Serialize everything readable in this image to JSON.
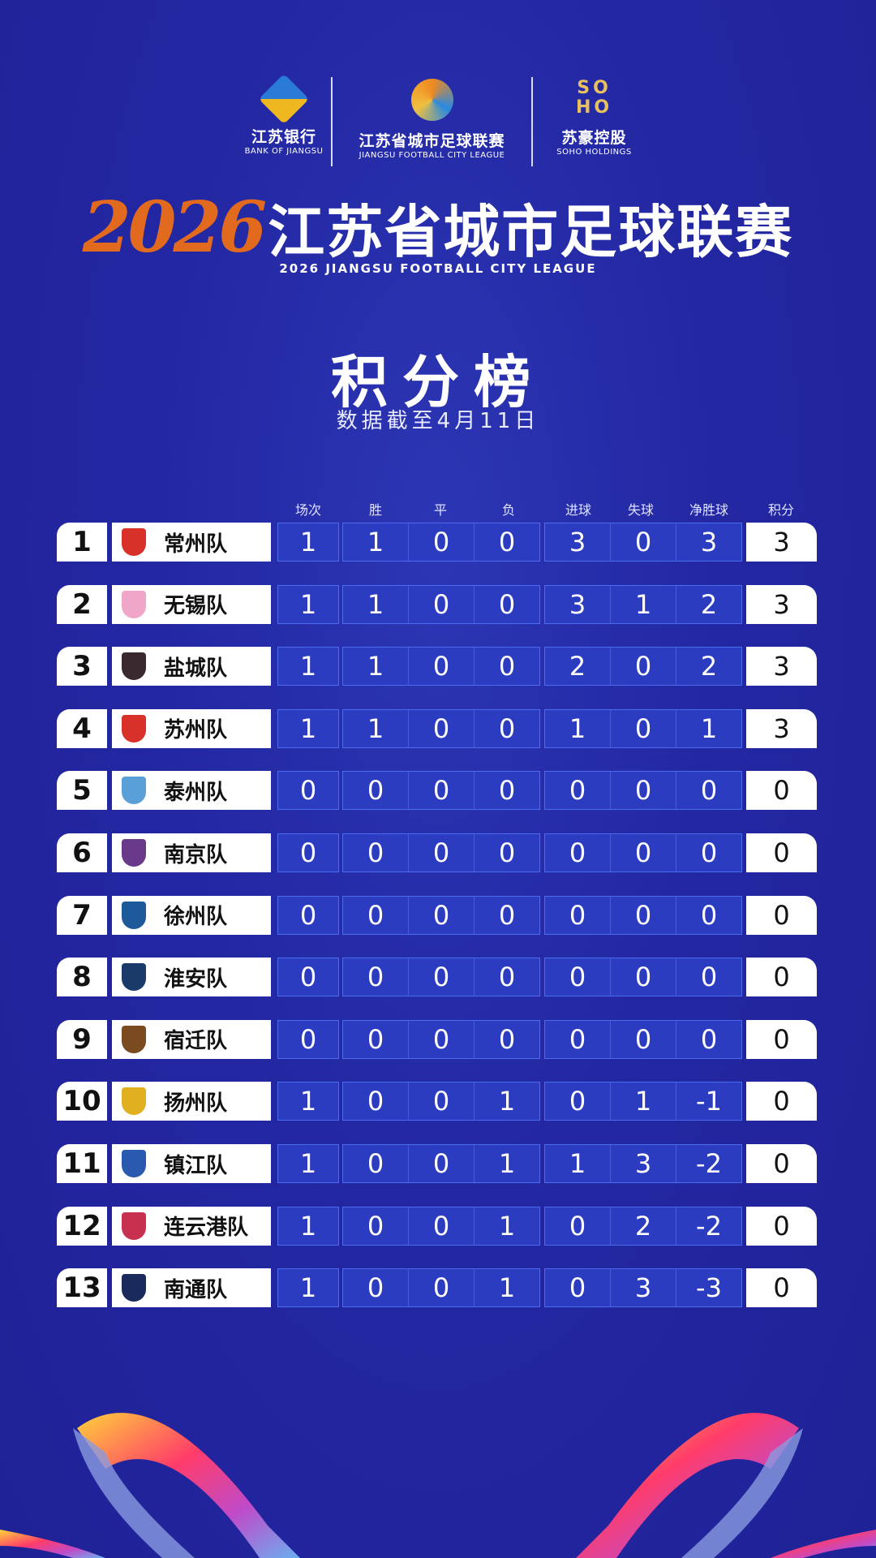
{
  "sponsors": [
    {
      "name": "江苏银行",
      "en": "BANK OF JIANGSU"
    },
    {
      "name": "江苏省城市足球联赛",
      "en": "JIANGSU FOOTBALL CITY LEAGUE"
    },
    {
      "name": "苏豪控股",
      "en": "SOHO HOLDINGS",
      "mark": "SOHO"
    }
  ],
  "title": {
    "year": "2026",
    "text": "江苏省城市足球联赛",
    "subtitle": "2026  JIANGSU FOOTBALL CITY LEAGUE"
  },
  "board": {
    "title": "积分榜",
    "date": "数据截至4月11日"
  },
  "columns": [
    "场次",
    "胜",
    "平",
    "负",
    "进球",
    "失球",
    "净胜球",
    "积分"
  ],
  "colors": {
    "background": "#22249c",
    "year": "#e26a1f",
    "stat_box": "#2b3cc0"
  },
  "rows": [
    {
      "rank": "1",
      "team": "常州队",
      "crest": "#d8312a",
      "stats": [
        "1",
        "1",
        "0",
        "0",
        "3",
        "0",
        "3"
      ],
      "points": "3"
    },
    {
      "rank": "2",
      "team": "无锡队",
      "crest": "#f0a6c8",
      "stats": [
        "1",
        "1",
        "0",
        "0",
        "3",
        "1",
        "2"
      ],
      "points": "3"
    },
    {
      "rank": "3",
      "team": "盐城队",
      "crest": "#3a2a30",
      "stats": [
        "1",
        "1",
        "0",
        "0",
        "2",
        "0",
        "2"
      ],
      "points": "3"
    },
    {
      "rank": "4",
      "team": "苏州队",
      "crest": "#d8312a",
      "stats": [
        "1",
        "1",
        "0",
        "0",
        "1",
        "0",
        "1"
      ],
      "points": "3"
    },
    {
      "rank": "5",
      "team": "泰州队",
      "crest": "#5aa0d8",
      "stats": [
        "0",
        "0",
        "0",
        "0",
        "0",
        "0",
        "0"
      ],
      "points": "0"
    },
    {
      "rank": "6",
      "team": "南京队",
      "crest": "#6a3a8a",
      "stats": [
        "0",
        "0",
        "0",
        "0",
        "0",
        "0",
        "0"
      ],
      "points": "0"
    },
    {
      "rank": "7",
      "team": "徐州队",
      "crest": "#1e5a9a",
      "stats": [
        "0",
        "0",
        "0",
        "0",
        "0",
        "0",
        "0"
      ],
      "points": "0"
    },
    {
      "rank": "8",
      "team": "淮安队",
      "crest": "#1a3a6a",
      "stats": [
        "0",
        "0",
        "0",
        "0",
        "0",
        "0",
        "0"
      ],
      "points": "0"
    },
    {
      "rank": "9",
      "team": "宿迁队",
      "crest": "#7a4a20",
      "stats": [
        "0",
        "0",
        "0",
        "0",
        "0",
        "0",
        "0"
      ],
      "points": "0"
    },
    {
      "rank": "10",
      "team": "扬州队",
      "crest": "#e0b020",
      "stats": [
        "1",
        "0",
        "0",
        "1",
        "0",
        "1",
        "-1"
      ],
      "points": "0"
    },
    {
      "rank": "11",
      "team": "镇江队",
      "crest": "#2a5ab0",
      "stats": [
        "1",
        "0",
        "0",
        "1",
        "1",
        "3",
        "-2"
      ],
      "points": "0"
    },
    {
      "rank": "12",
      "team": "连云港队",
      "crest": "#c83050",
      "stats": [
        "1",
        "0",
        "0",
        "1",
        "0",
        "2",
        "-2"
      ],
      "points": "0"
    },
    {
      "rank": "13",
      "team": "南通队",
      "crest": "#1a2a5a",
      "stats": [
        "1",
        "0",
        "0",
        "1",
        "0",
        "3",
        "-3"
      ],
      "points": "0"
    }
  ]
}
